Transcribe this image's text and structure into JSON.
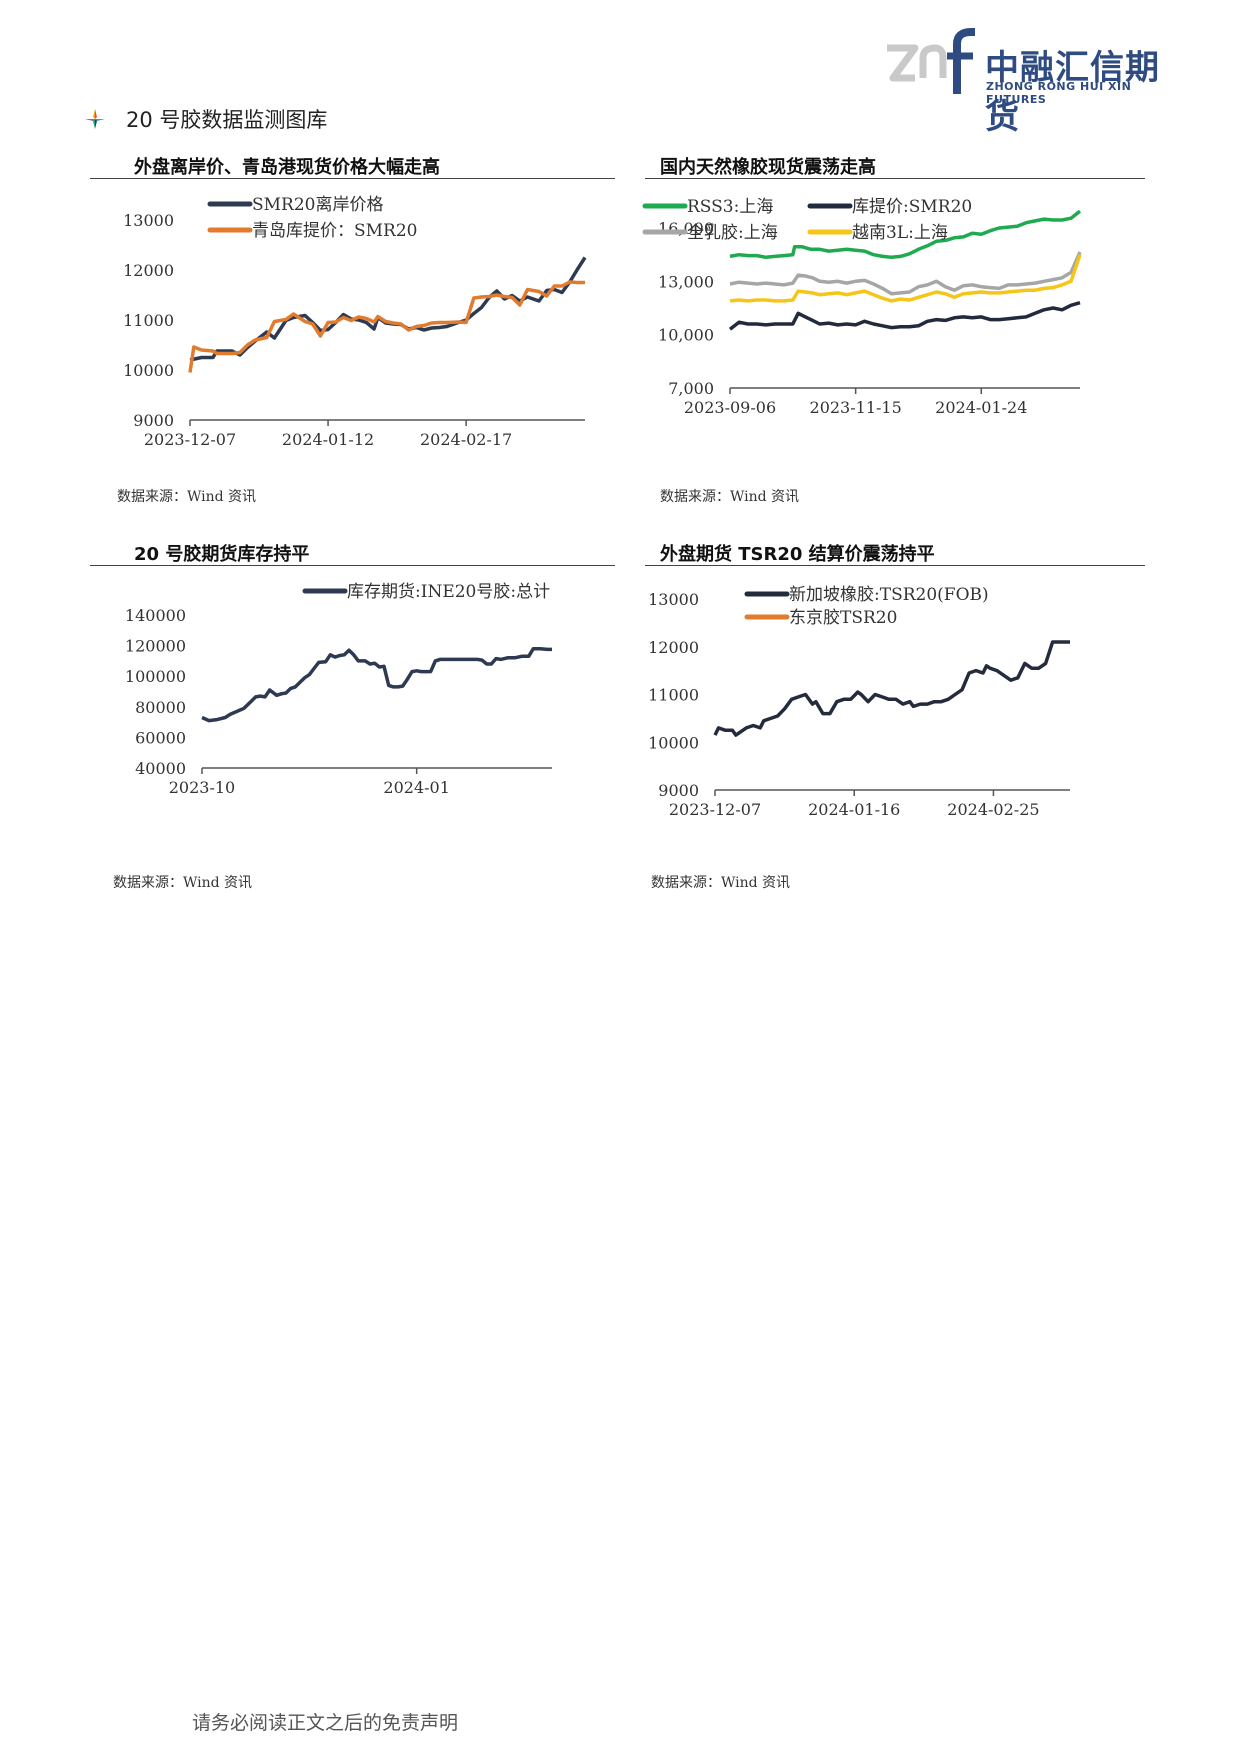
{
  "header": {
    "logo_mark": "znf",
    "logo_cn": "中融汇信期货",
    "logo_en": "ZHONG RONG HUI XIN FUTURES",
    "brand_color": "#2f4c82"
  },
  "section": {
    "icon": "diamond-bullet-icon",
    "title": "20 号胶数据监测图库"
  },
  "charts": [
    {
      "title": "外盘离岸价、青岛港现货价格大幅走高",
      "source": "数据来源：Wind 资讯",
      "chart_data": {
        "type": "line",
        "ylim": [
          9000,
          13000
        ],
        "yticks": [
          "13000",
          "12000",
          "11000",
          "10000",
          "9000"
        ],
        "ytick_values": [
          13000,
          12000,
          11000,
          10000,
          9000
        ],
        "xticks": [
          "2023-12-07",
          "2024-01-12",
          "2024-02-17"
        ],
        "xtick_pos": [
          0,
          36,
          72
        ],
        "xmax": 103,
        "series": [
          {
            "name": "SMR20离岸价格",
            "color": "#2d3a52",
            "x": [
              0,
              3,
              6,
              7,
              9,
              11,
              13,
              15,
              17,
              20,
              22,
              25,
              27,
              30,
              32,
              34,
              36,
              38,
              40,
              42,
              44,
              46,
              48,
              49,
              51,
              53,
              55,
              57,
              59,
              61,
              63,
              65,
              67,
              70,
              72,
              74,
              76,
              78,
              80,
              82,
              84,
              86,
              88,
              91,
              93,
              95,
              97,
              99,
              101,
              103
            ],
            "values": [
              10200,
              10250,
              10250,
              10380,
              10380,
              10380,
              10300,
              10450,
              10580,
              10760,
              10640,
              10990,
              11050,
              11090,
              10950,
              10790,
              10810,
              10950,
              11110,
              11020,
              11000,
              10950,
              10820,
              11050,
              10940,
              10920,
              10910,
              10820,
              10850,
              10800,
              10840,
              10850,
              10870,
              10950,
              11000,
              11130,
              11250,
              11450,
              11580,
              11420,
              11490,
              11380,
              11460,
              11380,
              11590,
              11610,
              11550,
              11760,
              12010,
              12250
            ]
          },
          {
            "name": "青岛库提价：SMR20",
            "color": "#e17b2e",
            "x": [
              0,
              1,
              3,
              6,
              7,
              9,
              11,
              13,
              15,
              17,
              20,
              22,
              25,
              27,
              30,
              32,
              34,
              36,
              38,
              40,
              42,
              44,
              46,
              48,
              49,
              51,
              53,
              55,
              57,
              59,
              61,
              63,
              65,
              67,
              70,
              72,
              74,
              76,
              78,
              80,
              82,
              84,
              86,
              88,
              91,
              93,
              95,
              97,
              99,
              101,
              103
            ],
            "values": [
              9950,
              10460,
              10400,
              10380,
              10330,
              10330,
              10330,
              10350,
              10500,
              10600,
              10650,
              10970,
              11010,
              11120,
              10970,
              10920,
              10680,
              10950,
              10960,
              11050,
              10990,
              11060,
              11030,
              10960,
              11070,
              10970,
              10940,
              10920,
              10800,
              10870,
              10890,
              10940,
              10950,
              10950,
              10960,
              10950,
              11440,
              11460,
              11470,
              11500,
              11470,
              11450,
              11300,
              11610,
              11570,
              11480,
              11680,
              11680,
              11760,
              11750,
              11750
            ]
          }
        ]
      }
    },
    {
      "title": "国内天然橡胶现货震荡走高",
      "source": "数据来源：Wind 资讯",
      "chart_data": {
        "type": "line",
        "ylim": [
          7000,
          16000
        ],
        "yticks": [
          "16,000",
          "13,000",
          "10,000",
          "7,000"
        ],
        "ytick_values": [
          16000,
          13000,
          10000,
          7000
        ],
        "xticks": [
          "2023-09-06",
          "2023-11-15",
          "2024-01-24"
        ],
        "xtick_pos": [
          0,
          70,
          140
        ],
        "xmax": 195,
        "series": [
          {
            "name": "RSS3:上海",
            "color": "#1eab4f",
            "x": [
              0,
              5,
              10,
              15,
              20,
              25,
              30,
              35,
              36,
              40,
              45,
              50,
              55,
              60,
              65,
              70,
              75,
              80,
              85,
              90,
              95,
              100,
              105,
              110,
              115,
              120,
              125,
              130,
              135,
              140,
              145,
              150,
              155,
              160,
              165,
              170,
              175,
              180,
              185,
              190,
              195
            ],
            "values": [
              14400,
              14500,
              14450,
              14450,
              14350,
              14400,
              14450,
              14500,
              14950,
              14950,
              14800,
              14800,
              14700,
              14750,
              14800,
              14750,
              14700,
              14500,
              14400,
              14350,
              14400,
              14550,
              14800,
              15000,
              15250,
              15300,
              15450,
              15500,
              15700,
              15650,
              15850,
              16000,
              16050,
              16100,
              16300,
              16400,
              16500,
              16450,
              16450,
              16550,
              16950
            ]
          },
          {
            "name": "库提价:SMR20",
            "color": "#222a3d",
            "x": [
              0,
              5,
              10,
              15,
              20,
              25,
              30,
              35,
              38,
              42,
              46,
              50,
              55,
              60,
              65,
              70,
              75,
              80,
              85,
              90,
              95,
              100,
              105,
              110,
              115,
              120,
              125,
              130,
              135,
              140,
              145,
              150,
              155,
              160,
              165,
              170,
              175,
              180,
              185,
              190,
              195
            ],
            "values": [
              10300,
              10700,
              10600,
              10600,
              10550,
              10600,
              10600,
              10600,
              11200,
              11000,
              10800,
              10600,
              10650,
              10550,
              10600,
              10550,
              10750,
              10600,
              10500,
              10400,
              10450,
              10450,
              10500,
              10750,
              10850,
              10800,
              10950,
              11000,
              10950,
              11000,
              10850,
              10850,
              10900,
              10950,
              11000,
              11200,
              11400,
              11500,
              11400,
              11650,
              11800
            ]
          },
          {
            "name": "全乳胶:上海",
            "color": "#a6a6a6",
            "x": [
              0,
              5,
              10,
              15,
              20,
              25,
              30,
              35,
              38,
              42,
              46,
              50,
              55,
              60,
              65,
              70,
              75,
              80,
              85,
              90,
              95,
              100,
              105,
              110,
              115,
              120,
              125,
              130,
              135,
              140,
              145,
              150,
              155,
              160,
              165,
              170,
              175,
              180,
              185,
              190,
              195
            ],
            "values": [
              12850,
              12950,
              12900,
              12850,
              12900,
              12850,
              12800,
              12900,
              13350,
              13300,
              13200,
              13000,
              12950,
              13000,
              12900,
              13000,
              13050,
              12850,
              12600,
              12300,
              12350,
              12400,
              12700,
              12800,
              13000,
              12700,
              12500,
              12750,
              12800,
              12700,
              12650,
              12600,
              12800,
              12800,
              12850,
              12900,
              13000,
              13100,
              13200,
              13500,
              14650
            ]
          },
          {
            "name": "越南3L:上海",
            "color": "#f5c518",
            "x": [
              0,
              5,
              10,
              15,
              20,
              25,
              30,
              35,
              38,
              42,
              46,
              50,
              55,
              60,
              65,
              70,
              75,
              80,
              85,
              90,
              95,
              100,
              105,
              110,
              115,
              120,
              125,
              130,
              135,
              140,
              145,
              150,
              155,
              160,
              165,
              170,
              175,
              180,
              185,
              190,
              195
            ],
            "values": [
              11900,
              11950,
              11900,
              11950,
              11950,
              11900,
              11900,
              11950,
              12450,
              12400,
              12350,
              12250,
              12300,
              12350,
              12250,
              12350,
              12450,
              12250,
              12050,
              11900,
              12000,
              11950,
              12100,
              12250,
              12400,
              12300,
              12100,
              12300,
              12350,
              12400,
              12350,
              12350,
              12400,
              12450,
              12500,
              12500,
              12600,
              12650,
              12800,
              13000,
              14500
            ]
          }
        ]
      }
    },
    {
      "title": "20 号胶期货库存持平",
      "source": "数据来源：Wind 资讯",
      "chart_data": {
        "type": "line",
        "ylim": [
          40000,
          140000
        ],
        "yticks": [
          "140000",
          "120000",
          "100000",
          "80000",
          "60000",
          "40000"
        ],
        "ytick_values": [
          140000,
          120000,
          100000,
          80000,
          60000,
          40000
        ],
        "xticks": [
          "2023-10",
          "2024-01"
        ],
        "xtick_pos": [
          0,
          92
        ],
        "xmax": 150,
        "series": [
          {
            "name": "库存期货:INE20号胶:总计",
            "color": "#2d3a52",
            "x": [
              0,
              3,
              6,
              10,
              12,
              15,
              18,
              20,
              23,
              25,
              27,
              29,
              32,
              34,
              36,
              38,
              40,
              42,
              44,
              46,
              48,
              50,
              53,
              55,
              57,
              59,
              61,
              63,
              65,
              67,
              70,
              72,
              74,
              76,
              78,
              80,
              82,
              84,
              86,
              88,
              90,
              92,
              94,
              96,
              98,
              100,
              102,
              105,
              108,
              110,
              112,
              115,
              118,
              120,
              122,
              124,
              126,
              128,
              131,
              134,
              137,
              140,
              142,
              145,
              148,
              150
            ],
            "values": [
              73000,
              71000,
              71500,
              73000,
              75000,
              77000,
              79000,
              82000,
              86500,
              87000,
              86500,
              91000,
              87500,
              88500,
              89000,
              92000,
              93000,
              96000,
              99000,
              101000,
              105000,
              109000,
              109500,
              114000,
              112500,
              113500,
              114000,
              117000,
              114000,
              110000,
              110000,
              108000,
              108500,
              106000,
              106500,
              94000,
              93000,
              93000,
              93500,
              98000,
              103000,
              103500,
              103000,
              103000,
              103000,
              110000,
              111000,
              111000,
              111000,
              111000,
              111000,
              111000,
              111000,
              110500,
              108000,
              108000,
              111500,
              111000,
              112000,
              112000,
              113000,
              113000,
              118000,
              118000,
              117500,
              117500
            ]
          }
        ]
      }
    },
    {
      "title": "外盘期货 TSR20 结算价震荡持平",
      "source": "数据来源：Wind 资讯",
      "chart_data": {
        "type": "line",
        "ylim": [
          9000,
          13000
        ],
        "yticks": [
          "13000",
          "12000",
          "11000",
          "10000",
          "9000"
        ],
        "ytick_values": [
          13000,
          12000,
          11000,
          10000,
          9000
        ],
        "xticks": [
          "2023-12-07",
          "2024-01-16",
          "2024-02-25"
        ],
        "xtick_pos": [
          0,
          40,
          80
        ],
        "xmax": 102,
        "series": [
          {
            "name": "新加坡橡胶:TSR20(FOB)",
            "color": "#232b3d",
            "x": [
              0,
              1,
              3,
              5,
              6,
              7,
              9,
              11,
              13,
              14,
              16,
              18,
              20,
              22,
              24,
              26,
              28,
              29,
              31,
              33,
              35,
              37,
              39,
              41,
              42,
              44,
              46,
              48,
              50,
              52,
              54,
              56,
              57,
              59,
              61,
              63,
              65,
              67,
              69,
              71,
              73,
              75,
              77,
              78,
              79,
              81,
              83,
              85,
              87,
              89,
              91,
              93,
              95,
              97,
              99,
              101,
              102
            ],
            "values": [
              10150,
              10300,
              10250,
              10250,
              10150,
              10200,
              10300,
              10350,
              10300,
              10450,
              10500,
              10550,
              10700,
              10900,
              10950,
              11000,
              10800,
              10850,
              10600,
              10600,
              10850,
              10900,
              10900,
              11050,
              11000,
              10850,
              11000,
              10950,
              10900,
              10900,
              10800,
              10850,
              10750,
              10800,
              10800,
              10850,
              10850,
              10900,
              11000,
              11100,
              11450,
              11500,
              11450,
              11600,
              11550,
              11500,
              11400,
              11300,
              11350,
              11650,
              11550,
              11550,
              11650,
              12100,
              12100,
              12100,
              12100
            ]
          },
          {
            "name": "东京胶TSR20",
            "color": "#e17b2e",
            "x": [],
            "values": []
          }
        ]
      }
    }
  ],
  "footer": {
    "disclaimer": "请务必阅读正文之后的免责声明"
  }
}
